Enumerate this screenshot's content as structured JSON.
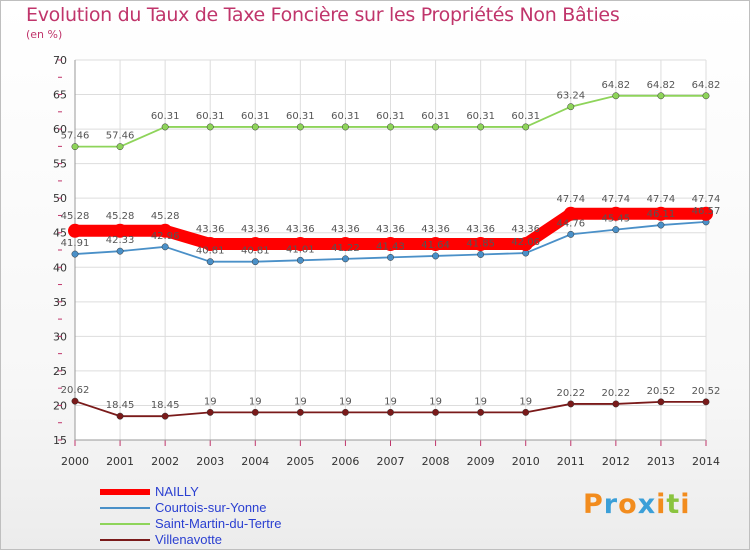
{
  "header": {
    "title": "Evolution du Taux de Taxe Foncière sur les Propriétés Non Bâties",
    "unit": "(en %)"
  },
  "brand": {
    "text": "Proxiti",
    "colors": [
      "#f28c1e",
      "#3b9fd8",
      "#f28c1e",
      "#3b9fd8",
      "#f28c1e",
      "#8ac43f",
      "#f28c1e"
    ]
  },
  "chart_data": {
    "type": "line",
    "title": "Evolution du Taux de Taxe Foncière sur les Propriétés Non Bâties",
    "ylabel": "(en %)",
    "xlabel": "",
    "ylim": [
      15,
      70
    ],
    "yticks": [
      15,
      20,
      25,
      30,
      35,
      40,
      45,
      50,
      55,
      60,
      65,
      70
    ],
    "grid": true,
    "legend": "bottom-left",
    "x": [
      "2000",
      "2001",
      "2002",
      "2003",
      "2004",
      "2005",
      "2006",
      "2007",
      "2008",
      "2009",
      "2010",
      "2011",
      "2012",
      "2013",
      "2014"
    ],
    "series": [
      {
        "name": "NAILLY",
        "color": "#ff0000",
        "emphasis": true,
        "values": [
          45.28,
          45.28,
          45.28,
          43.36,
          43.36,
          43.36,
          43.36,
          43.36,
          43.36,
          43.36,
          43.36,
          47.74,
          47.74,
          47.74,
          47.74
        ],
        "labels": [
          "45.28",
          "45.28",
          "45.28",
          "43.36",
          "43.36",
          "43.36",
          "43.36",
          "43.36",
          "43.36",
          "43.36",
          "43.36",
          "47.74",
          "47.74",
          "47.74",
          "47.74"
        ]
      },
      {
        "name": "Courtois-sur-Yonne",
        "color": "#4a90c8",
        "emphasis": false,
        "values": [
          41.91,
          42.33,
          42.96,
          40.81,
          40.81,
          41.01,
          41.22,
          41.43,
          41.64,
          41.85,
          42.06,
          44.76,
          45.45,
          46.11,
          46.57
        ],
        "labels": [
          "41.91",
          "42.33",
          "42.96",
          "40.81",
          "40.81",
          "41.01",
          "41.22",
          "41.43",
          "41.64",
          "41.85",
          "42.06",
          "44.76",
          "45.45",
          "46.11",
          "46.57"
        ]
      },
      {
        "name": "Saint-Martin-du-Tertre",
        "color": "#8ed45a",
        "emphasis": false,
        "values": [
          57.46,
          57.46,
          60.31,
          60.31,
          60.31,
          60.31,
          60.31,
          60.31,
          60.31,
          60.31,
          60.31,
          63.24,
          64.82,
          64.82,
          64.82
        ],
        "labels": [
          "57.46",
          "57.46",
          "60.31",
          "60.31",
          "60.31",
          "60.31",
          "60.31",
          "60.31",
          "60.31",
          "60.31",
          "60.31",
          "63.24",
          "64.82",
          "64.82",
          "64.82"
        ]
      },
      {
        "name": "Villenavotte",
        "color": "#7a1a1a",
        "emphasis": false,
        "values": [
          20.62,
          18.45,
          18.45,
          19,
          19,
          19,
          19,
          19,
          19,
          19,
          19,
          20.22,
          20.22,
          20.52,
          20.52
        ],
        "labels": [
          "20.62",
          "18.45",
          "18.45",
          "19",
          "19",
          "19",
          "19",
          "19",
          "19",
          "19",
          "19",
          "20.22",
          "20.22",
          "20.52",
          "20.52"
        ]
      }
    ]
  }
}
